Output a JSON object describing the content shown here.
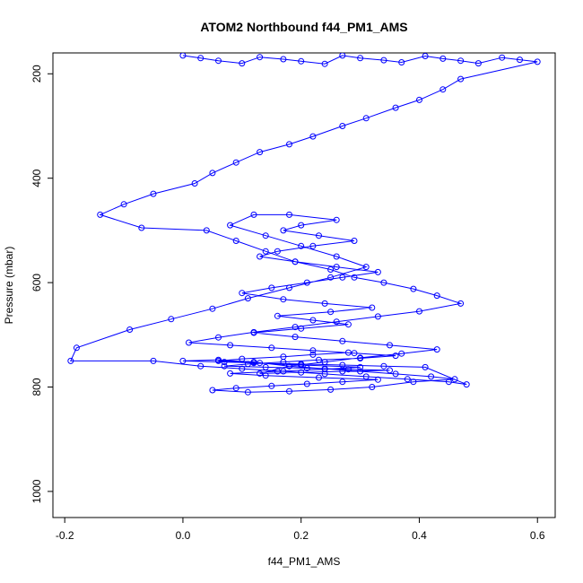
{
  "chart_data": {
    "type": "scatter",
    "title": "ATOM2 Northbound f44_PM1_AMS",
    "xlabel": "f44_PM1_AMS",
    "ylabel": "Pressure (mbar)",
    "xlim": [
      -0.22,
      0.63
    ],
    "ylim": [
      1050,
      160
    ],
    "y_reversed": true,
    "x_ticks": [
      -0.2,
      0.0,
      0.2,
      0.4,
      0.6
    ],
    "x_tick_labels": [
      "-0.2",
      "0.0",
      "0.2",
      "0.4",
      "0.6"
    ],
    "y_ticks": [
      200,
      400,
      600,
      800,
      1000
    ],
    "y_tick_labels": [
      "200",
      "400",
      "600",
      "800",
      "1000"
    ],
    "grid": false,
    "marker": "open-circle",
    "connected": true,
    "color": "#0000ff",
    "series": [
      {
        "x": [
          0.0,
          0.03,
          0.06,
          0.1,
          0.13,
          0.17,
          0.2,
          0.24,
          0.27,
          0.3,
          0.34,
          0.37,
          0.41,
          0.44,
          0.47,
          0.5,
          0.54,
          0.57,
          0.6,
          0.47,
          0.44,
          0.4,
          0.36,
          0.31,
          0.27,
          0.22,
          0.18,
          0.13,
          0.09,
          0.05,
          0.02,
          -0.05,
          -0.1,
          -0.14,
          -0.07,
          0.04,
          0.09,
          0.14,
          0.19,
          0.25,
          0.29,
          0.34,
          0.39,
          0.43,
          0.47,
          0.4,
          0.33,
          0.26,
          0.19,
          0.12,
          0.06,
          0.01,
          0.08,
          0.15,
          0.22,
          0.29,
          0.36,
          0.3,
          0.23,
          0.17,
          0.11,
          0.07,
          0.14,
          0.21,
          0.28,
          0.35,
          0.27,
          0.2,
          0.13,
          0.18,
          0.24,
          0.3,
          0.37,
          0.43,
          0.35,
          0.27,
          0.19,
          0.12,
          0.2,
          0.28,
          0.22,
          0.16,
          0.25,
          0.32,
          0.24,
          0.17,
          0.1,
          0.15,
          0.21,
          0.27,
          0.33,
          0.26,
          0.19,
          0.13,
          0.16,
          0.22,
          0.29,
          0.23,
          0.17,
          0.2,
          0.26,
          0.18,
          0.12,
          0.08,
          0.14,
          0.2,
          0.26,
          0.31,
          0.25,
          0.18,
          0.11,
          0.05,
          -0.02,
          -0.09,
          -0.18,
          -0.19,
          -0.05,
          0.03,
          0.1,
          0.17,
          0.24,
          0.31,
          0.38,
          0.45,
          0.48,
          0.41,
          0.34,
          0.27,
          0.2,
          0.13,
          0.07,
          0.0,
          0.06,
          0.12,
          0.18,
          0.24,
          0.3,
          0.36,
          0.42,
          0.46,
          0.39,
          0.32,
          0.25,
          0.18,
          0.11,
          0.05,
          0.09,
          0.15,
          0.21,
          0.27,
          0.33,
          0.23,
          0.14,
          0.08,
          0.16,
          0.24,
          0.3,
          0.2,
          0.12,
          0.06,
          0.1,
          0.17,
          0.22,
          0.28
        ],
        "y": [
          165,
          170,
          175,
          180,
          168,
          172,
          176,
          181,
          165,
          170,
          174,
          178,
          166,
          171,
          175,
          180,
          169,
          173,
          177,
          210,
          230,
          250,
          265,
          285,
          300,
          320,
          335,
          350,
          370,
          390,
          410,
          430,
          450,
          470,
          495,
          500,
          520,
          540,
          560,
          575,
          590,
          600,
          612,
          625,
          640,
          655,
          665,
          675,
          685,
          695,
          705,
          715,
          720,
          725,
          730,
          735,
          740,
          745,
          748,
          752,
          756,
          760,
          762,
          764,
          766,
          768,
          770,
          772,
          774,
          760,
          752,
          744,
          736,
          728,
          720,
          712,
          704,
          696,
          688,
          680,
          672,
          664,
          656,
          648,
          640,
          632,
          620,
          610,
          600,
          590,
          580,
          570,
          560,
          550,
          540,
          530,
          520,
          510,
          500,
          490,
          480,
          470,
          470,
          490,
          510,
          530,
          550,
          570,
          590,
          610,
          630,
          650,
          670,
          690,
          725,
          750,
          750,
          760,
          765,
          770,
          775,
          780,
          785,
          790,
          795,
          762,
          760,
          758,
          756,
          754,
          752,
          750,
          748,
          752,
          760,
          765,
          770,
          775,
          780,
          785,
          790,
          800,
          805,
          808,
          810,
          806,
          802,
          798,
          794,
          790,
          786,
          782,
          778,
          774,
          770,
          766,
          762,
          758,
          754,
          750,
          746,
          742,
          738,
          734
        ]
      }
    ]
  }
}
